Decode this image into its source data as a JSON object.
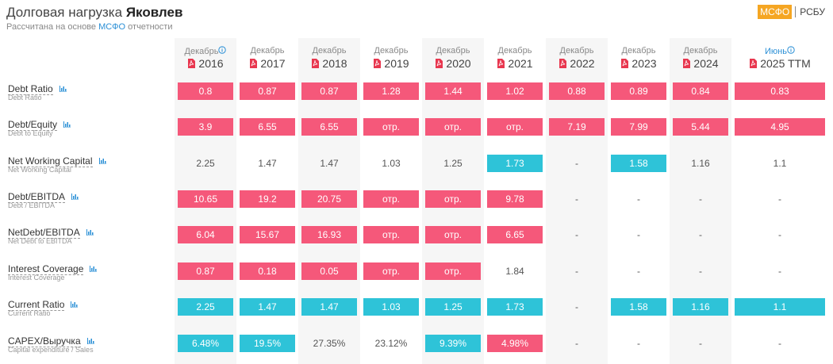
{
  "header": {
    "title": "Долговая нагрузка ",
    "company": "Яковлев",
    "subtitle_before": "Рассчитана на основе ",
    "subtitle_link": "МСФО",
    "subtitle_after": " отчетности",
    "tabs": [
      "МСФО",
      "РСБУ"
    ]
  },
  "table": {
    "columns": [
      {
        "period": "Декабрь",
        "year": "2016",
        "info": true
      },
      {
        "period": "Декабрь",
        "year": "2017"
      },
      {
        "period": "Декабрь",
        "year": "2018"
      },
      {
        "period": "Декабрь",
        "year": "2019"
      },
      {
        "period": "Декабрь",
        "year": "2020"
      },
      {
        "period": "Декабрь",
        "year": "2021"
      },
      {
        "period": "Декабрь",
        "year": "2022"
      },
      {
        "period": "Декабрь",
        "year": "2023"
      },
      {
        "period": "Декабрь",
        "year": "2024"
      },
      {
        "period": "Июнь",
        "year": "2025 TTM",
        "info": true
      }
    ],
    "rows": [
      {
        "label": "Debt Ratio",
        "sublabel": "Debt Ratio",
        "cells": [
          {
            "text": "0.8",
            "tone": "red"
          },
          {
            "text": "0.87",
            "tone": "red"
          },
          {
            "text": "0.87",
            "tone": "red"
          },
          {
            "text": "1.28",
            "tone": "red"
          },
          {
            "text": "1.44",
            "tone": "red"
          },
          {
            "text": "1.02",
            "tone": "red"
          },
          {
            "text": "0.88",
            "tone": "red"
          },
          {
            "text": "0.89",
            "tone": "red"
          },
          {
            "text": "0.84",
            "tone": "red"
          },
          {
            "text": "0.83",
            "tone": "red"
          }
        ]
      },
      {
        "label": "Debt/Equity",
        "sublabel": "Debt to Equity",
        "cells": [
          {
            "text": "3.9",
            "tone": "red"
          },
          {
            "text": "6.55",
            "tone": "red"
          },
          {
            "text": "6.55",
            "tone": "red"
          },
          {
            "text": "отр.",
            "tone": "red"
          },
          {
            "text": "отр.",
            "tone": "red"
          },
          {
            "text": "отр.",
            "tone": "red"
          },
          {
            "text": "7.19",
            "tone": "red"
          },
          {
            "text": "7.99",
            "tone": "red"
          },
          {
            "text": "5.44",
            "tone": "red"
          },
          {
            "text": "4.95",
            "tone": "red"
          }
        ]
      },
      {
        "label": "Net Working Capital",
        "sublabel": "Net Working Capital",
        "cells": [
          {
            "text": "2.25"
          },
          {
            "text": "1.47"
          },
          {
            "text": "1.47"
          },
          {
            "text": "1.03"
          },
          {
            "text": "1.25"
          },
          {
            "text": "1.73",
            "tone": "blue"
          },
          {
            "text": "-"
          },
          {
            "text": "1.58",
            "tone": "blue"
          },
          {
            "text": "1.16"
          },
          {
            "text": "1.1"
          }
        ]
      },
      {
        "label": "Debt/EBITDA",
        "sublabel": "Debt / EBITDA",
        "cells": [
          {
            "text": "10.65",
            "tone": "red"
          },
          {
            "text": "19.2",
            "tone": "red"
          },
          {
            "text": "20.75",
            "tone": "red"
          },
          {
            "text": "отр.",
            "tone": "red"
          },
          {
            "text": "отр.",
            "tone": "red"
          },
          {
            "text": "9.78",
            "tone": "red"
          },
          {
            "text": "-"
          },
          {
            "text": "-"
          },
          {
            "text": "-"
          },
          {
            "text": "-"
          }
        ]
      },
      {
        "label": "NetDebt/EBITDA",
        "sublabel": "Net Debt to EBITDA",
        "cells": [
          {
            "text": "6.04",
            "tone": "red"
          },
          {
            "text": "15.67",
            "tone": "red"
          },
          {
            "text": "16.93",
            "tone": "red"
          },
          {
            "text": "отр.",
            "tone": "red"
          },
          {
            "text": "отр.",
            "tone": "red"
          },
          {
            "text": "6.65",
            "tone": "red"
          },
          {
            "text": "-"
          },
          {
            "text": "-"
          },
          {
            "text": "-"
          },
          {
            "text": "-"
          }
        ]
      },
      {
        "label": "Interest Coverage",
        "sublabel": "Interest Coverage",
        "cells": [
          {
            "text": "0.87",
            "tone": "red"
          },
          {
            "text": "0.18",
            "tone": "red"
          },
          {
            "text": "0.05",
            "tone": "red"
          },
          {
            "text": "отр.",
            "tone": "red"
          },
          {
            "text": "отр.",
            "tone": "red"
          },
          {
            "text": "1.84"
          },
          {
            "text": "-"
          },
          {
            "text": "-"
          },
          {
            "text": "-"
          },
          {
            "text": "-"
          }
        ]
      },
      {
        "label": "Current Ratio",
        "sublabel": "Current Ratio",
        "cells": [
          {
            "text": "2.25",
            "tone": "blue"
          },
          {
            "text": "1.47",
            "tone": "blue"
          },
          {
            "text": "1.47",
            "tone": "blue"
          },
          {
            "text": "1.03",
            "tone": "blue"
          },
          {
            "text": "1.25",
            "tone": "blue"
          },
          {
            "text": "1.73",
            "tone": "blue"
          },
          {
            "text": "-"
          },
          {
            "text": "1.58",
            "tone": "blue"
          },
          {
            "text": "1.16",
            "tone": "blue"
          },
          {
            "text": "1.1",
            "tone": "blue"
          }
        ]
      },
      {
        "label": "CAPEX/Выручка",
        "sublabel": "Capital expenditure / Sales",
        "cells": [
          {
            "text": "6.48%",
            "tone": "blue"
          },
          {
            "text": "19.5%",
            "tone": "blue"
          },
          {
            "text": "27.35%"
          },
          {
            "text": "23.12%"
          },
          {
            "text": "9.39%",
            "tone": "blue"
          },
          {
            "text": "4.98%",
            "tone": "red"
          },
          {
            "text": "-"
          },
          {
            "text": "-"
          },
          {
            "text": "-"
          },
          {
            "text": "-"
          }
        ]
      }
    ]
  }
}
